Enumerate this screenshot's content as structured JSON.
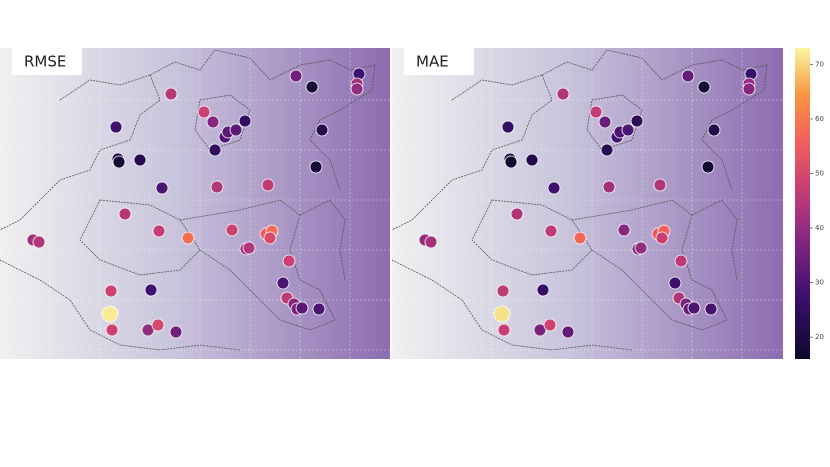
{
  "panels": [
    {
      "title": "RMSE",
      "values": [
        45,
        48,
        38,
        35,
        17,
        28,
        42,
        40,
        28,
        30,
        32,
        32,
        25,
        25,
        22,
        18,
        22,
        30,
        44,
        46,
        18,
        22,
        45,
        42,
        44,
        47,
        58,
        48,
        55,
        58,
        42,
        44,
        48,
        30,
        48,
        28,
        72,
        48,
        40,
        50,
        35,
        46,
        38,
        36,
        32,
        30,
        50
      ]
    },
    {
      "title": "MAE",
      "values": [
        44,
        47,
        34,
        33,
        17,
        27,
        40,
        38,
        26,
        28,
        30,
        30,
        24,
        23,
        21,
        17,
        21,
        28,
        42,
        44,
        17,
        21,
        44,
        40,
        42,
        46,
        57,
        38,
        54,
        56,
        38,
        40,
        46,
        28,
        46,
        26,
        71,
        47,
        36,
        49,
        33,
        44,
        36,
        34,
        30,
        29,
        48
      ]
    }
  ],
  "colorbar": {
    "lim": [
      16,
      73
    ],
    "ticks": [
      20,
      30,
      40,
      50,
      60,
      70
    ]
  }
}
